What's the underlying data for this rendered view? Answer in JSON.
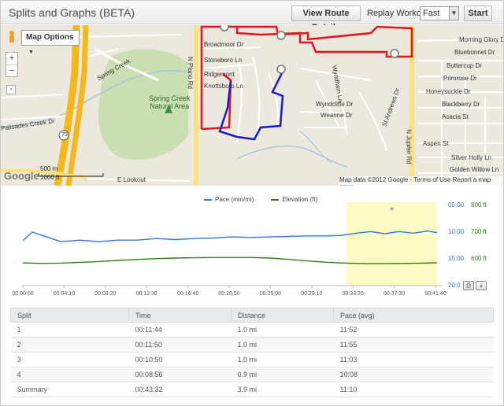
{
  "header": {
    "title": "Splits and Graphs (BETA)",
    "view_route_label": "View Route Details",
    "replay_label": "Replay Workout:",
    "replay_speed": "Fast",
    "start_label": "Start"
  },
  "map": {
    "options_label": "Map Options",
    "zoom_in": "+",
    "zoom_out": "−",
    "google_logo": "Google",
    "attribution": "Map data ©2012 Google - Terms of Use  Report a map error",
    "scale_m": "500 m",
    "scale_ft": "1000 ft",
    "natural_area": "Spring Creek\nNatural Area",
    "labels": {
      "spring_creek": "Spring Creek",
      "palisades": "Palisades Creek Dr",
      "broadmoor": "Broadmoor Dr",
      "stoneboro": "Stoneboro Ln",
      "ridgemont": "Ridgemont",
      "knottsboro": "Knottsboro Ln",
      "plano": "N Plano Rd",
      "jupiter": "N Jupiter Rd",
      "morning_glory": "Morning Glory Dr",
      "bluebonnet": "Bluebonnet Dr",
      "buttercup": "Buttercup Dr",
      "primrose": "Primrose Dr",
      "honeysuckle": "Honeysuckle Dr",
      "blackberry": "Blackberry Dr",
      "acacia": "Acacia St",
      "aspen": "Aspen St",
      "silver_holly": "Silver Holly Ln",
      "golden_willow": "Golden Willow Ln",
      "wyndham": "Wyndham Ln",
      "wyndcliffe": "Wyndcliffe Dr",
      "weanne": "Weanne Dr",
      "st_andrews": "St Andrews Dr",
      "e_lookout": "E Lookout",
      "route_75": "75"
    }
  },
  "chart_data": {
    "type": "line",
    "series": [
      {
        "name": "Pace (min/mi)",
        "color": "#2b7bd6",
        "x": [
          0,
          1,
          2,
          4,
          6,
          8,
          10,
          12,
          14,
          16,
          18,
          20,
          22,
          24,
          26,
          28,
          30,
          32,
          33.5,
          35,
          36.5,
          38,
          39.5,
          41,
          42.5,
          43.5
        ],
        "values": [
          11.6,
          10.0,
          10.6,
          11.8,
          11.5,
          11.8,
          11.5,
          11.5,
          11.2,
          11.4,
          11.2,
          11.1,
          10.9,
          11.0,
          10.9,
          10.8,
          10.7,
          10.7,
          10.6,
          10.2,
          9.9,
          10.3,
          9.9,
          10.2,
          9.8,
          10.1
        ]
      },
      {
        "name": "Elevation (ft)",
        "color": "#2f7f1a",
        "x": [
          0,
          2,
          4,
          6,
          8,
          10,
          12,
          14,
          16,
          18,
          20,
          22,
          24,
          26,
          28,
          30,
          32,
          34,
          36,
          38,
          40,
          42,
          43.5
        ],
        "values": [
          585,
          583,
          584,
          587,
          590,
          594,
          598,
          601,
          603,
          604,
          605,
          605,
          605,
          603,
          598,
          592,
          587,
          584,
          582,
          582,
          583,
          584,
          585
        ]
      }
    ],
    "x_tick_labels": [
      "00:00:00",
      "00:04:10",
      "00:08:20",
      "00:12:30",
      "00:16:40",
      "00:20:50",
      "00:25:00",
      "00:29:10",
      "00:33:20",
      "00:37:30",
      "00:41:40"
    ],
    "xlim": [
      0,
      44
    ],
    "pace_tick_labels": [
      "05:00",
      "10:00",
      "15:00",
      "20:0"
    ],
    "pace_ylim": [
      5,
      20
    ],
    "elev_tick_labels": [
      "800 ft",
      "700 ft",
      "600 ft"
    ],
    "elev_ylim": [
      500,
      800
    ],
    "highlight": [
      34,
      43.5
    ],
    "legend_position": "top-center"
  },
  "splits": {
    "headers": [
      "Split",
      "Time",
      "Distance",
      "Pace (avg)"
    ],
    "rows": [
      [
        "1",
        "00:11:44",
        "1.0 mi",
        "11:52"
      ],
      [
        "2",
        "00:11:50",
        "1.0 mi",
        "11:55"
      ],
      [
        "3",
        "00:10:50",
        "1.0 mi",
        "11:03"
      ],
      [
        "4",
        "00:08:56",
        "0.9 mi",
        "10:08"
      ],
      [
        "Summary",
        "00:43:32",
        "3.9 mi",
        "11:10"
      ]
    ]
  },
  "colors": {
    "route_red": "#e8121b",
    "route_blue": "#1a1acc",
    "highway": "#f5b81c",
    "highlight": "#fbfbc2"
  }
}
